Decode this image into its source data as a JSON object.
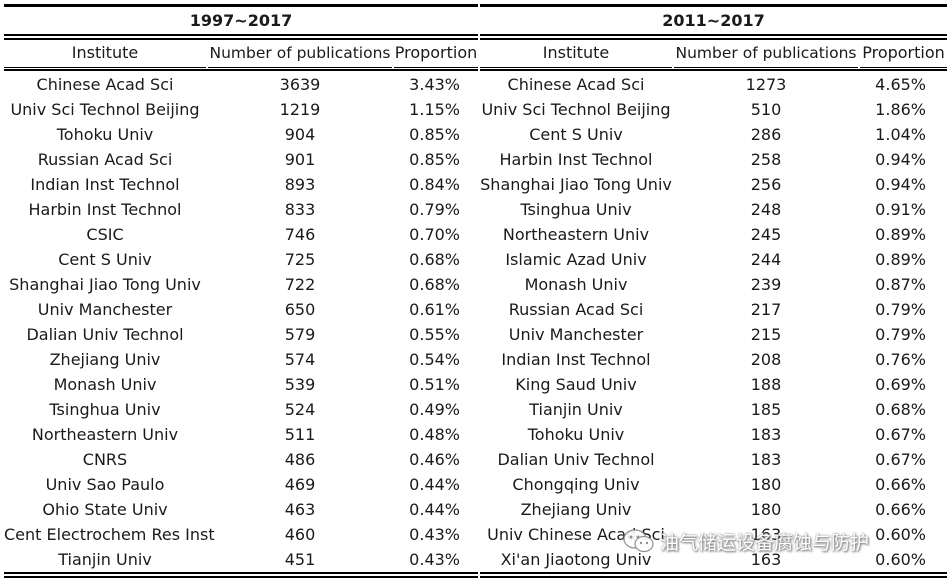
{
  "left": {
    "period": "1997~2017",
    "headers": {
      "institute": "Institute",
      "number": "Number of publications",
      "proportion": "Proportion"
    },
    "rows": [
      {
        "institute": "Chinese Acad Sci",
        "number": "3639",
        "proportion": "3.43%"
      },
      {
        "institute": "Univ Sci Technol Beijing",
        "number": "1219",
        "proportion": "1.15%"
      },
      {
        "institute": "Tohoku Univ",
        "number": "904",
        "proportion": "0.85%"
      },
      {
        "institute": "Russian Acad Sci",
        "number": "901",
        "proportion": "0.85%"
      },
      {
        "institute": "Indian Inst Technol",
        "number": "893",
        "proportion": "0.84%"
      },
      {
        "institute": "Harbin Inst Technol",
        "number": "833",
        "proportion": "0.79%"
      },
      {
        "institute": "CSIC",
        "number": "746",
        "proportion": "0.70%"
      },
      {
        "institute": "Cent S Univ",
        "number": "725",
        "proportion": "0.68%"
      },
      {
        "institute": "Shanghai Jiao Tong Univ",
        "number": "722",
        "proportion": "0.68%"
      },
      {
        "institute": "Univ Manchester",
        "number": "650",
        "proportion": "0.61%"
      },
      {
        "institute": "Dalian Univ Technol",
        "number": "579",
        "proportion": "0.55%"
      },
      {
        "institute": "Zhejiang Univ",
        "number": "574",
        "proportion": "0.54%"
      },
      {
        "institute": "Monash Univ",
        "number": "539",
        "proportion": "0.51%"
      },
      {
        "institute": "Tsinghua Univ",
        "number": "524",
        "proportion": "0.49%"
      },
      {
        "institute": "Northeastern Univ",
        "number": "511",
        "proportion": "0.48%"
      },
      {
        "institute": "CNRS",
        "number": "486",
        "proportion": "0.46%"
      },
      {
        "institute": "Univ Sao Paulo",
        "number": "469",
        "proportion": "0.44%"
      },
      {
        "institute": "Ohio State Univ",
        "number": "463",
        "proportion": "0.44%"
      },
      {
        "institute": "Cent Electrochem Res Inst",
        "number": "460",
        "proportion": "0.43%"
      },
      {
        "institute": "Tianjin Univ",
        "number": "451",
        "proportion": "0.43%"
      }
    ]
  },
  "right": {
    "period": "2011~2017",
    "headers": {
      "institute": "Institute",
      "number": "Number of publications",
      "proportion": "Proportion"
    },
    "rows": [
      {
        "institute": "Chinese Acad Sci",
        "number": "1273",
        "proportion": "4.65%"
      },
      {
        "institute": "Univ Sci Technol Beijing",
        "number": "510",
        "proportion": "1.86%"
      },
      {
        "institute": "Cent S Univ",
        "number": "286",
        "proportion": "1.04%"
      },
      {
        "institute": "Harbin Inst Technol",
        "number": "258",
        "proportion": "0.94%"
      },
      {
        "institute": "Shanghai Jiao Tong Univ",
        "number": "256",
        "proportion": "0.94%"
      },
      {
        "institute": "Tsinghua Univ",
        "number": "248",
        "proportion": "0.91%"
      },
      {
        "institute": "Northeastern Univ",
        "number": "245",
        "proportion": "0.89%"
      },
      {
        "institute": "Islamic Azad Univ",
        "number": "244",
        "proportion": "0.89%"
      },
      {
        "institute": "Monash Univ",
        "number": "239",
        "proportion": "0.87%"
      },
      {
        "institute": "Russian Acad Sci",
        "number": "217",
        "proportion": "0.79%"
      },
      {
        "institute": "Univ Manchester",
        "number": "215",
        "proportion": "0.79%"
      },
      {
        "institute": "Indian Inst Technol",
        "number": "208",
        "proportion": "0.76%"
      },
      {
        "institute": "King Saud Univ",
        "number": "188",
        "proportion": "0.69%"
      },
      {
        "institute": "Tianjin Univ",
        "number": "185",
        "proportion": "0.68%"
      },
      {
        "institute": "Tohoku Univ",
        "number": "183",
        "proportion": "0.67%"
      },
      {
        "institute": "Dalian Univ Technol",
        "number": "183",
        "proportion": "0.67%"
      },
      {
        "institute": "Chongqing Univ",
        "number": "180",
        "proportion": "0.66%"
      },
      {
        "institute": "Zhejiang Univ",
        "number": "180",
        "proportion": "0.66%"
      },
      {
        "institute": "Univ Chinese Acad Sci",
        "number": "163",
        "proportion": "0.60%"
      },
      {
        "institute": "Xi'an Jiaotong Univ",
        "number": "163",
        "proportion": "0.60%"
      }
    ]
  },
  "watermark": {
    "text": "油气储运设备腐蚀与防护",
    "icon": "wechat-icon"
  }
}
